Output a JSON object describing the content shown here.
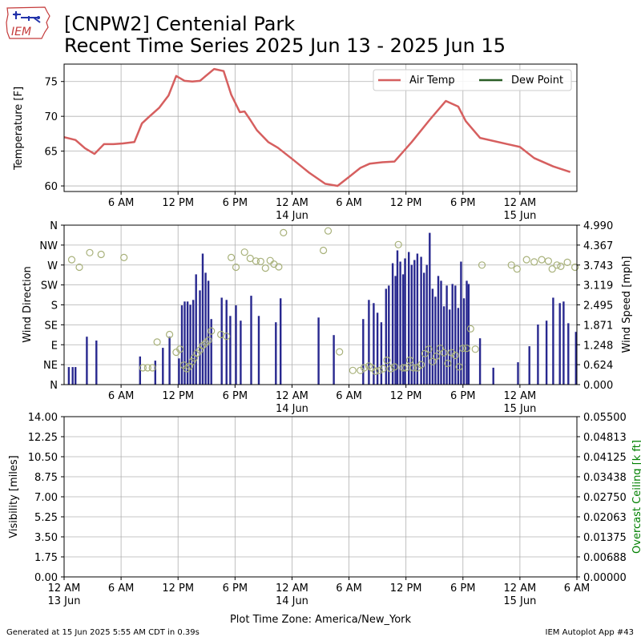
{
  "header": {
    "title_line1": "[CNPW2] Centenial Park",
    "title_line2": "Recent Time Series 2025 Jun 13 - 2025 Jun 15",
    "logo_text": "IEM"
  },
  "footer": {
    "generated": "Generated at 15 Jun 2025 5:55 AM CDT in 0.39s",
    "app": "IEM Autoplot App #43"
  },
  "colors": {
    "air_temp": "#d65f5f",
    "dew_point": "#2a5e26",
    "wind_bar": "#28288f",
    "wind_dir_marker": "#a8b17a",
    "ceiling_label": "#008000",
    "grid": "#b0b0b0"
  },
  "chart_data": [
    {
      "type": "line",
      "panel": "temperature",
      "x_unit": "hours since 2025-06-13 00:00 America/New_York",
      "xlim": [
        0,
        54
      ],
      "ylabel": "Temperature [F]",
      "ylim": [
        59.2,
        77.5
      ],
      "yticks": [
        60,
        65,
        70,
        75
      ],
      "xtick_labels": [
        {
          "x": 6,
          "label": "6 AM"
        },
        {
          "x": 12,
          "label": "12 PM"
        },
        {
          "x": 18,
          "label": "6 PM"
        },
        {
          "x": 24,
          "label": "12 AM",
          "sub": "14 Jun"
        },
        {
          "x": 30,
          "label": "6 AM"
        },
        {
          "x": 36,
          "label": "12 PM"
        },
        {
          "x": 42,
          "label": "6 PM"
        },
        {
          "x": 48,
          "label": "12 AM",
          "sub": "15 Jun"
        }
      ],
      "grid": true,
      "legend": {
        "placement": "top-right",
        "entries": [
          "Air Temp",
          "Dew Point"
        ]
      },
      "series": [
        {
          "name": "Air Temp",
          "x": [
            0,
            1.2,
            2.2,
            3.2,
            4.2,
            5.2,
            6.2,
            7.4,
            8.2,
            9.0,
            10.0,
            11.0,
            11.8,
            12.7,
            13.5,
            14.3,
            15.8,
            16.8,
            17.6,
            18.5,
            19.0,
            19.6,
            20.3,
            21.5,
            22.5,
            24.0,
            25.8,
            27.5,
            28.8,
            30.2,
            31.2,
            32.2,
            33.5,
            34.8,
            36.6,
            38.5,
            40.2,
            41.5,
            42.3,
            43.8,
            48.0,
            49.5,
            51.5,
            53.3
          ],
          "y": [
            67.0,
            66.6,
            65.4,
            64.6,
            66.0,
            66.0,
            66.1,
            66.3,
            69.0,
            70.0,
            71.2,
            73.0,
            75.8,
            75.1,
            75.0,
            75.1,
            76.8,
            76.5,
            73.1,
            70.6,
            70.7,
            69.5,
            68.0,
            66.3,
            65.5,
            63.9,
            61.9,
            60.3,
            60.0,
            61.5,
            62.6,
            63.2,
            63.4,
            63.5,
            66.3,
            69.5,
            72.2,
            71.4,
            69.3,
            66.9,
            65.6,
            64.0,
            62.8,
            62.0
          ]
        },
        {
          "name": "Dew Point",
          "x": [],
          "y": []
        }
      ]
    },
    {
      "type": "bar",
      "panel": "wind",
      "x_unit": "hours since 2025-06-13 00:00 America/New_York",
      "xlim": [
        0,
        54
      ],
      "ylabel": "Wind Direction",
      "y2label": "Wind Speed [mph]",
      "dir_ticks": [
        "N",
        "NE",
        "E",
        "SE",
        "S",
        "SW",
        "W",
        "NW",
        "N"
      ],
      "speed_ticks": [
        "0.000",
        "0.624",
        "1.248",
        "1.871",
        "2.495",
        "3.119",
        "3.743",
        "4.367",
        "4.990"
      ],
      "ylim_speed": [
        0,
        4.99
      ],
      "ylim_dir": [
        0,
        360
      ],
      "grid": true,
      "series": [
        {
          "name": "Wind Speed",
          "x": [
            0.5,
            0.9,
            1.2,
            2.4,
            3.4,
            8.0,
            9.6,
            10.4,
            11.1,
            12.1,
            12.4,
            12.7,
            13.0,
            13.3,
            13.6,
            13.9,
            14.3,
            14.6,
            14.9,
            15.2,
            15.5,
            16.6,
            17.1,
            17.5,
            18.1,
            18.6,
            19.7,
            20.5,
            22.3,
            22.8,
            26.8,
            28.4,
            31.5,
            32.1,
            32.6,
            33.0,
            33.4,
            33.9,
            34.2,
            34.6,
            34.9,
            35.1,
            35.4,
            35.7,
            35.9,
            36.3,
            36.6,
            36.9,
            37.2,
            37.6,
            37.9,
            38.2,
            38.5,
            38.8,
            39.1,
            39.4,
            39.7,
            40.0,
            40.3,
            40.6,
            40.9,
            41.2,
            41.5,
            41.8,
            42.1,
            42.4,
            42.6,
            43.8,
            45.2,
            47.8,
            49.0,
            49.9,
            50.8,
            51.5,
            52.2,
            52.6,
            53.1,
            53.9
          ],
          "values": [
            0.55,
            0.55,
            0.55,
            1.5,
            1.38,
            0.88,
            0.75,
            1.15,
            1.5,
            0.82,
            2.48,
            2.6,
            2.6,
            2.5,
            2.65,
            3.45,
            2.95,
            4.1,
            3.5,
            3.25,
            2.05,
            2.72,
            2.65,
            2.15,
            2.48,
            2.0,
            2.78,
            2.15,
            1.95,
            2.7,
            2.1,
            1.55,
            2.05,
            2.65,
            2.55,
            2.25,
            1.95,
            3.0,
            3.1,
            3.8,
            3.4,
            4.2,
            3.85,
            3.45,
            3.95,
            4.15,
            3.75,
            3.9,
            4.1,
            4.0,
            3.5,
            3.75,
            4.75,
            3.0,
            2.75,
            3.4,
            3.25,
            2.45,
            3.1,
            2.35,
            3.15,
            3.1,
            2.4,
            3.85,
            2.7,
            3.25,
            3.15,
            1.45,
            0.53,
            0.7,
            1.2,
            1.88,
            2.0,
            2.72,
            2.55,
            2.6,
            1.92,
            1.65
          ]
        },
        {
          "name": "Wind Direction",
          "x": [
            0.8,
            1.6,
            2.7,
            3.9,
            6.3,
            8.3,
            8.8,
            9.3,
            9.8,
            11.1,
            11.8,
            12.2,
            12.6,
            12.9,
            13.2,
            13.5,
            13.7,
            14.0,
            14.3,
            14.6,
            14.9,
            15.2,
            15.5,
            16.5,
            17.1,
            17.6,
            18.1,
            19.0,
            19.6,
            20.2,
            20.7,
            21.2,
            21.7,
            22.1,
            22.6,
            23.1,
            27.3,
            27.8,
            29.0,
            30.4,
            31.2,
            31.6,
            32.1,
            32.4,
            32.8,
            33.2,
            33.6,
            34.0,
            34.4,
            34.8,
            35.2,
            35.7,
            36.0,
            36.4,
            36.8,
            37.2,
            37.6,
            38.0,
            38.4,
            38.8,
            39.2,
            39.6,
            40.0,
            40.4,
            40.8,
            41.2,
            41.6,
            42.0,
            42.4,
            42.8,
            43.3,
            44.0,
            47.1,
            47.7,
            48.7,
            49.5,
            50.3,
            51.0,
            51.4,
            51.9,
            52.3,
            53.0,
            53.8
          ],
          "values": [
            282,
            265,
            298,
            294,
            287,
            38,
            38,
            38,
            96,
            113,
            73,
            80,
            44,
            36,
            41,
            52,
            60,
            71,
            78,
            88,
            94,
            100,
            121,
            113,
            109,
            287,
            265,
            299,
            285,
            279,
            278,
            263,
            280,
            272,
            266,
            343,
            303,
            347,
            74,
            32,
            32,
            38,
            42,
            38,
            30,
            32,
            36,
            55,
            36,
            40,
            316,
            38,
            38,
            55,
            38,
            38,
            45,
            70,
            80,
            52,
            64,
            82,
            72,
            48,
            72,
            66,
            40,
            82,
            82,
            126,
            80,
            270,
            270,
            261,
            282,
            277,
            282,
            279,
            261,
            270,
            267,
            276,
            265
          ]
        }
      ]
    },
    {
      "type": "line",
      "panel": "visibility",
      "x_unit": "hours since 2025-06-13 00:00 America/New_York",
      "xlim": [
        0,
        54
      ],
      "ylabel": "Visibility [miles]",
      "y2label": "Overcast Ceiling [k ft]",
      "yticks": [
        "0.00",
        "1.75",
        "3.50",
        "5.25",
        "7.00",
        "8.75",
        "10.50",
        "12.25",
        "14.00"
      ],
      "y2ticks": [
        "0.00000",
        "0.00688",
        "0.01375",
        "0.02063",
        "0.02750",
        "0.03438",
        "0.04125",
        "0.04813",
        "0.05500"
      ],
      "ylim": [
        0,
        14
      ],
      "y2lim": [
        0,
        0.055
      ],
      "xtick_labels": [
        {
          "x": 0,
          "label": "12 AM",
          "sub": "13 Jun"
        },
        {
          "x": 6,
          "label": "6 AM"
        },
        {
          "x": 12,
          "label": "12 PM"
        },
        {
          "x": 18,
          "label": "6 PM"
        },
        {
          "x": 24,
          "label": "12 AM",
          "sub": "14 Jun"
        },
        {
          "x": 30,
          "label": "6 AM"
        },
        {
          "x": 36,
          "label": "12 PM"
        },
        {
          "x": 42,
          "label": "6 PM"
        },
        {
          "x": 48,
          "label": "12 AM",
          "sub": "15 Jun"
        },
        {
          "x": 54,
          "label": "6 AM"
        }
      ],
      "xlabel": "Plot Time Zone: America/New_York",
      "grid": true,
      "series": []
    }
  ]
}
